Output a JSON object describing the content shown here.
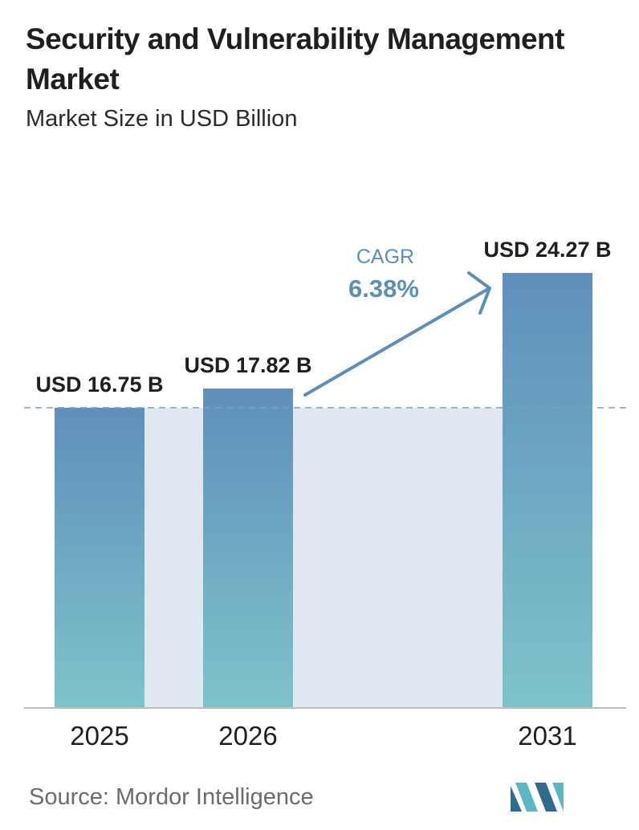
{
  "header": {
    "title": "Security and Vulnerability Management Market",
    "subtitle": "Market Size in USD Billion"
  },
  "chart_data": {
    "type": "bar",
    "categories": [
      "2025",
      "2026",
      "2031"
    ],
    "values": [
      16.75,
      17.82,
      24.27
    ],
    "data_labels": [
      "USD 16.75 B",
      "USD 17.82 B",
      "USD 24.27 B"
    ],
    "unit": "USD Billion",
    "ylim": [
      0,
      26
    ],
    "grid": false,
    "legend": "none",
    "annotation": {
      "label": "CAGR",
      "value": "6.38%",
      "from": "2026",
      "to": "2031"
    },
    "reference_line": {
      "value": 16.75,
      "style": "dashed"
    }
  },
  "footer": {
    "source": "Source:  Mordor Intelligence",
    "logo_icon": "mordor-intelligence-logo-icon"
  },
  "colors": {
    "bar_top": "#5f8fbc",
    "bar_bottom": "#7ec3c9",
    "band": "#dfe8f1",
    "arrow": "#5a8fbb",
    "cagr_text": "#5a8fbb",
    "axis": "#bdbdbd",
    "dashed": "#7fa1bf",
    "logo_dark": "#2e6b8f",
    "logo_light": "#5bb8c2"
  }
}
